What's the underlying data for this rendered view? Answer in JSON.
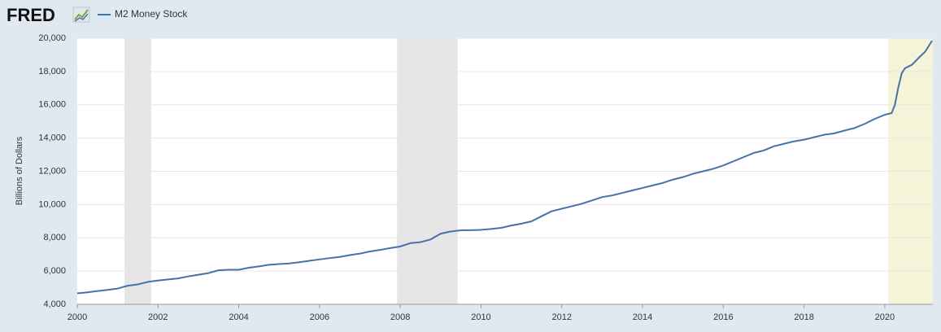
{
  "logo": "FRED",
  "chart_data": {
    "type": "line",
    "y_label": "Billions of Dollars",
    "x": [
      2000,
      2000.25,
      2000.5,
      2000.75,
      2001,
      2001.25,
      2001.5,
      2001.75,
      2002,
      2002.25,
      2002.5,
      2002.75,
      2003,
      2003.25,
      2003.5,
      2003.75,
      2004,
      2004.25,
      2004.5,
      2004.75,
      2005,
      2005.25,
      2005.5,
      2005.75,
      2006,
      2006.25,
      2006.5,
      2006.75,
      2007,
      2007.25,
      2007.5,
      2007.75,
      2008,
      2008.25,
      2008.5,
      2008.75,
      2009,
      2009.25,
      2009.5,
      2009.75,
      2010,
      2010.25,
      2010.5,
      2010.75,
      2011,
      2011.25,
      2011.5,
      2011.75,
      2012,
      2012.25,
      2012.5,
      2012.75,
      2013,
      2013.25,
      2013.5,
      2013.75,
      2014,
      2014.25,
      2014.5,
      2014.75,
      2015,
      2015.25,
      2015.5,
      2015.75,
      2016,
      2016.25,
      2016.5,
      2016.75,
      2017,
      2017.25,
      2017.5,
      2017.75,
      2018,
      2018.25,
      2018.5,
      2018.75,
      2019,
      2019.25,
      2019.5,
      2019.75,
      2020,
      2020.17,
      2020.25,
      2020.33,
      2020.42,
      2020.5,
      2020.67,
      2020.83,
      2021,
      2021.17
    ],
    "series": [
      {
        "name": "M2 Money Stock",
        "color": "#4572a7",
        "values": [
          4660,
          4720,
          4800,
          4870,
          4950,
          5120,
          5200,
          5350,
          5430,
          5500,
          5560,
          5680,
          5780,
          5880,
          6050,
          6080,
          6080,
          6200,
          6280,
          6380,
          6420,
          6460,
          6530,
          6620,
          6700,
          6780,
          6850,
          6960,
          7050,
          7180,
          7270,
          7380,
          7480,
          7680,
          7740,
          7900,
          8250,
          8380,
          8450,
          8460,
          8480,
          8530,
          8600,
          8740,
          8850,
          8990,
          9300,
          9600,
          9750,
          9900,
          10050,
          10250,
          10450,
          10550,
          10700,
          10850,
          11000,
          11150,
          11300,
          11500,
          11650,
          11850,
          12000,
          12150,
          12350,
          12600,
          12850,
          13100,
          13250,
          13500,
          13650,
          13800,
          13900,
          14050,
          14200,
          14280,
          14450,
          14600,
          14850,
          15150,
          15400,
          15500,
          16000,
          17000,
          17900,
          18200,
          18400,
          18800,
          19200,
          19850
        ]
      }
    ],
    "recessions": [
      [
        2001.17,
        2001.83
      ],
      [
        2007.92,
        2009.42
      ]
    ],
    "recession_color": "#e6e6e6",
    "highlight": [
      2020.08,
      2021.19
    ],
    "highlight_color": "#f5f3d8",
    "xlim": [
      2000,
      2021.19
    ],
    "xticks": [
      2000,
      2002,
      2004,
      2006,
      2008,
      2010,
      2012,
      2014,
      2016,
      2018,
      2020
    ],
    "ylim": [
      4000,
      20000
    ],
    "yticks": [
      {
        "value": 4000,
        "label": "4,000"
      },
      {
        "value": 6000,
        "label": "6,000"
      },
      {
        "value": 8000,
        "label": "8,000"
      },
      {
        "value": 10000,
        "label": "10,000"
      },
      {
        "value": 12000,
        "label": "12,000"
      },
      {
        "value": 14000,
        "label": "14,000"
      },
      {
        "value": 16000,
        "label": "16,000"
      },
      {
        "value": 18000,
        "label": "18,000"
      },
      {
        "value": 20000,
        "label": "20,000"
      }
    ],
    "grid": true
  }
}
